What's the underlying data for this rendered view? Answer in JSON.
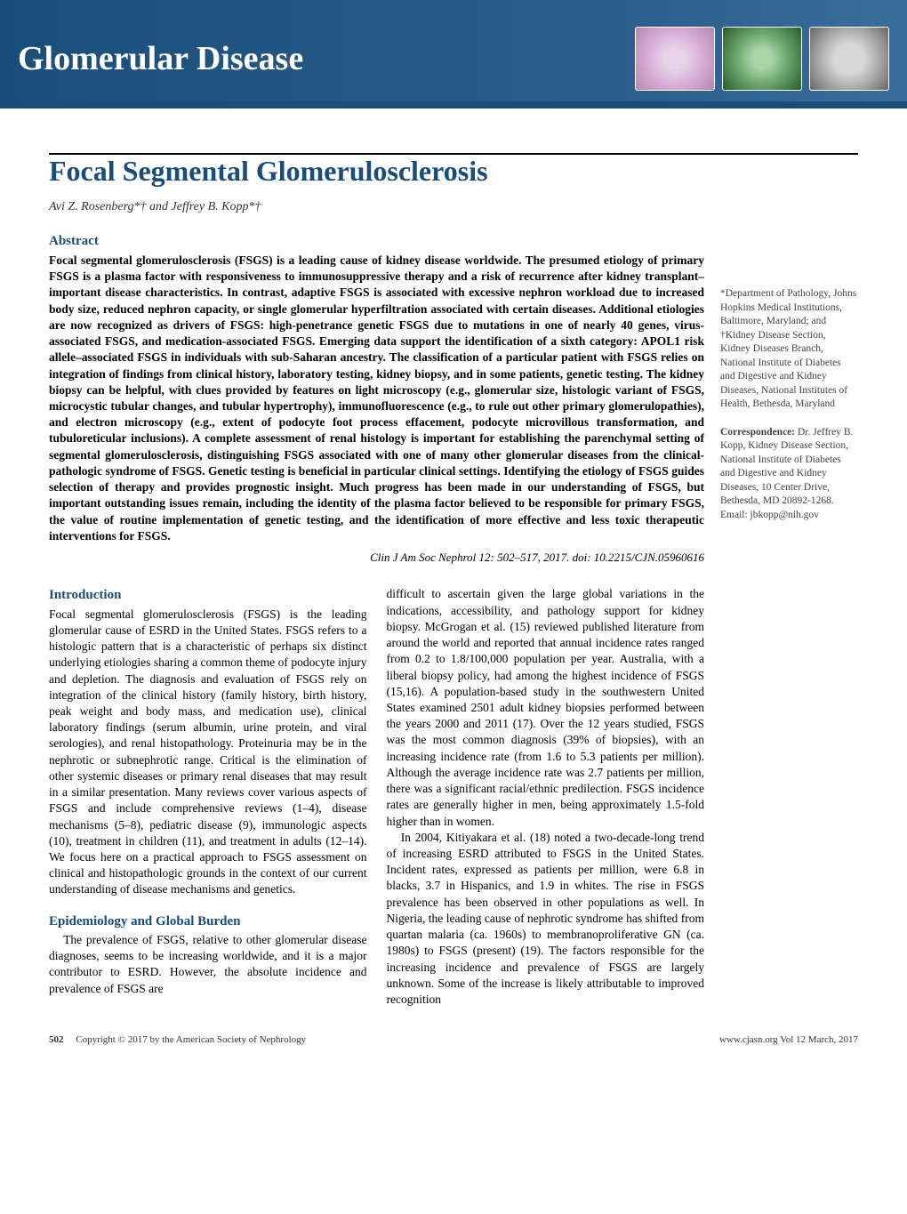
{
  "header": {
    "section_title": "Glomerular Disease"
  },
  "article": {
    "title": "Focal Segmental Glomerulosclerosis",
    "authors": "Avi Z. Rosenberg*† and Jeffrey B. Kopp*†"
  },
  "abstract": {
    "heading": "Abstract",
    "text": "Focal segmental glomerulosclerosis (FSGS) is a leading cause of kidney disease worldwide. The presumed etiology of primary FSGS is a plasma factor with responsiveness to immunosuppressive therapy and a risk of recurrence after kidney transplant–important disease characteristics. In contrast, adaptive FSGS is associated with excessive nephron workload due to increased body size, reduced nephron capacity, or single glomerular hyperfiltration associated with certain diseases. Additional etiologies are now recognized as drivers of FSGS: high-penetrance genetic FSGS due to mutations in one of nearly 40 genes, virus-associated FSGS, and medication-associated FSGS. Emerging data support the identification of a sixth category: APOL1 risk allele–associated FSGS in individuals with sub-Saharan ancestry. The classification of a particular patient with FSGS relies on integration of findings from clinical history, laboratory testing, kidney biopsy, and in some patients, genetic testing. The kidney biopsy can be helpful, with clues provided by features on light microscopy (e.g., glomerular size, histologic variant of FSGS, microcystic tubular changes, and tubular hypertrophy), immunofluorescence (e.g., to rule out other primary glomerulopathies), and electron microscopy (e.g., extent of podocyte foot process effacement, podocyte microvillous transformation, and tubuloreticular inclusions). A complete assessment of renal histology is important for establishing the parenchymal setting of segmental glomerulosclerosis, distinguishing FSGS associated with one of many other glomerular diseases from the clinical-pathologic syndrome of FSGS. Genetic testing is beneficial in particular clinical settings. Identifying the etiology of FSGS guides selection of therapy and provides prognostic insight. Much progress has been made in our understanding of FSGS, but important outstanding issues remain, including the identity of the plasma factor believed to be responsible for primary FSGS, the value of routine implementation of genetic testing, and the identification of more effective and less toxic therapeutic interventions for FSGS.",
    "citation": "Clin J Am Soc Nephrol 12: 502–517, 2017. doi: 10.2215/CJN.05960616"
  },
  "sidebar": {
    "affiliations": "*Department of Pathology, Johns Hopkins Medical Institutions, Baltimore, Maryland; and †Kidney Disease Section, Kidney Diseases Branch, National Institute of Diabetes and Digestive and Kidney Diseases, National Institutes of Health, Bethesda, Maryland",
    "correspondence_label": "Correspondence:",
    "correspondence": " Dr. Jeffrey B. Kopp, Kidney Disease Section, National Institute of Diabetes and Digestive and Kidney Diseases, 10 Center Drive, Bethesda, MD 20892-1268. Email: jbkopp@nih.gov"
  },
  "sections": {
    "intro_heading": "Introduction",
    "intro_p1": "Focal segmental glomerulosclerosis (FSGS) is the leading glomerular cause of ESRD in the United States. FSGS refers to a histologic pattern that is a characteristic of perhaps six distinct underlying etiologies sharing a common theme of podocyte injury and depletion. The diagnosis and evaluation of FSGS rely on integration of the clinical history (family history, birth history, peak weight and body mass, and medication use), clinical laboratory findings (serum albumin, urine protein, and viral serologies), and renal histopathology. Proteinuria may be in the nephrotic or subnephrotic range. Critical is the elimination of other systemic diseases or primary renal diseases that may result in a similar presentation. Many reviews cover various aspects of FSGS and include comprehensive reviews (1–4), disease mechanisms (5–8), pediatric disease (9), immunologic aspects (10), treatment in children (11), and treatment in adults (12–14). We focus here on a practical approach to FSGS assessment on clinical and histopathologic grounds in the context of our current understanding of disease mechanisms and genetics.",
    "epi_heading": "Epidemiology and Global Burden",
    "epi_p1": "The prevalence of FSGS, relative to other glomerular disease diagnoses, seems to be increasing worldwide, and it is a major contributor to ESRD. However, the absolute incidence and prevalence of FSGS are",
    "col2_p1": "difficult to ascertain given the large global variations in the indications, accessibility, and pathology support for kidney biopsy. McGrogan et al. (15) reviewed published literature from around the world and reported that annual incidence rates ranged from 0.2 to 1.8/100,000 population per year. Australia, with a liberal biopsy policy, had among the highest incidence of FSGS (15,16). A population-based study in the southwestern United States examined 2501 adult kidney biopsies performed between the years 2000 and 2011 (17). Over the 12 years studied, FSGS was the most common diagnosis (39% of biopsies), with an increasing incidence rate (from 1.6 to 5.3 patients per million). Although the average incidence rate was 2.7 patients per million, there was a significant racial/ethnic predilection. FSGS incidence rates are generally higher in men, being approximately 1.5-fold higher than in women.",
    "col2_p2": "In 2004, Kitiyakara et al. (18) noted a two-decade-long trend of increasing ESRD attributed to FSGS in the United States. Incident rates, expressed as patients per million, were 6.8 in blacks, 3.7 in Hispanics, and 1.9 in whites. The rise in FSGS prevalence has been observed in other populations as well. In Nigeria, the leading cause of nephrotic syndrome has shifted from quartan malaria (ca. 1960s) to membranoproliferative GN (ca. 1980s) to FSGS (present) (19). The factors responsible for the increasing incidence and prevalence of FSGS are largely unknown. Some of the increase is likely attributable to improved recognition"
  },
  "footer": {
    "page": "502",
    "copyright": "Copyright © 2017 by the American Society of Nephrology",
    "url": "www.cjasn.org Vol 12 March, 2017"
  }
}
